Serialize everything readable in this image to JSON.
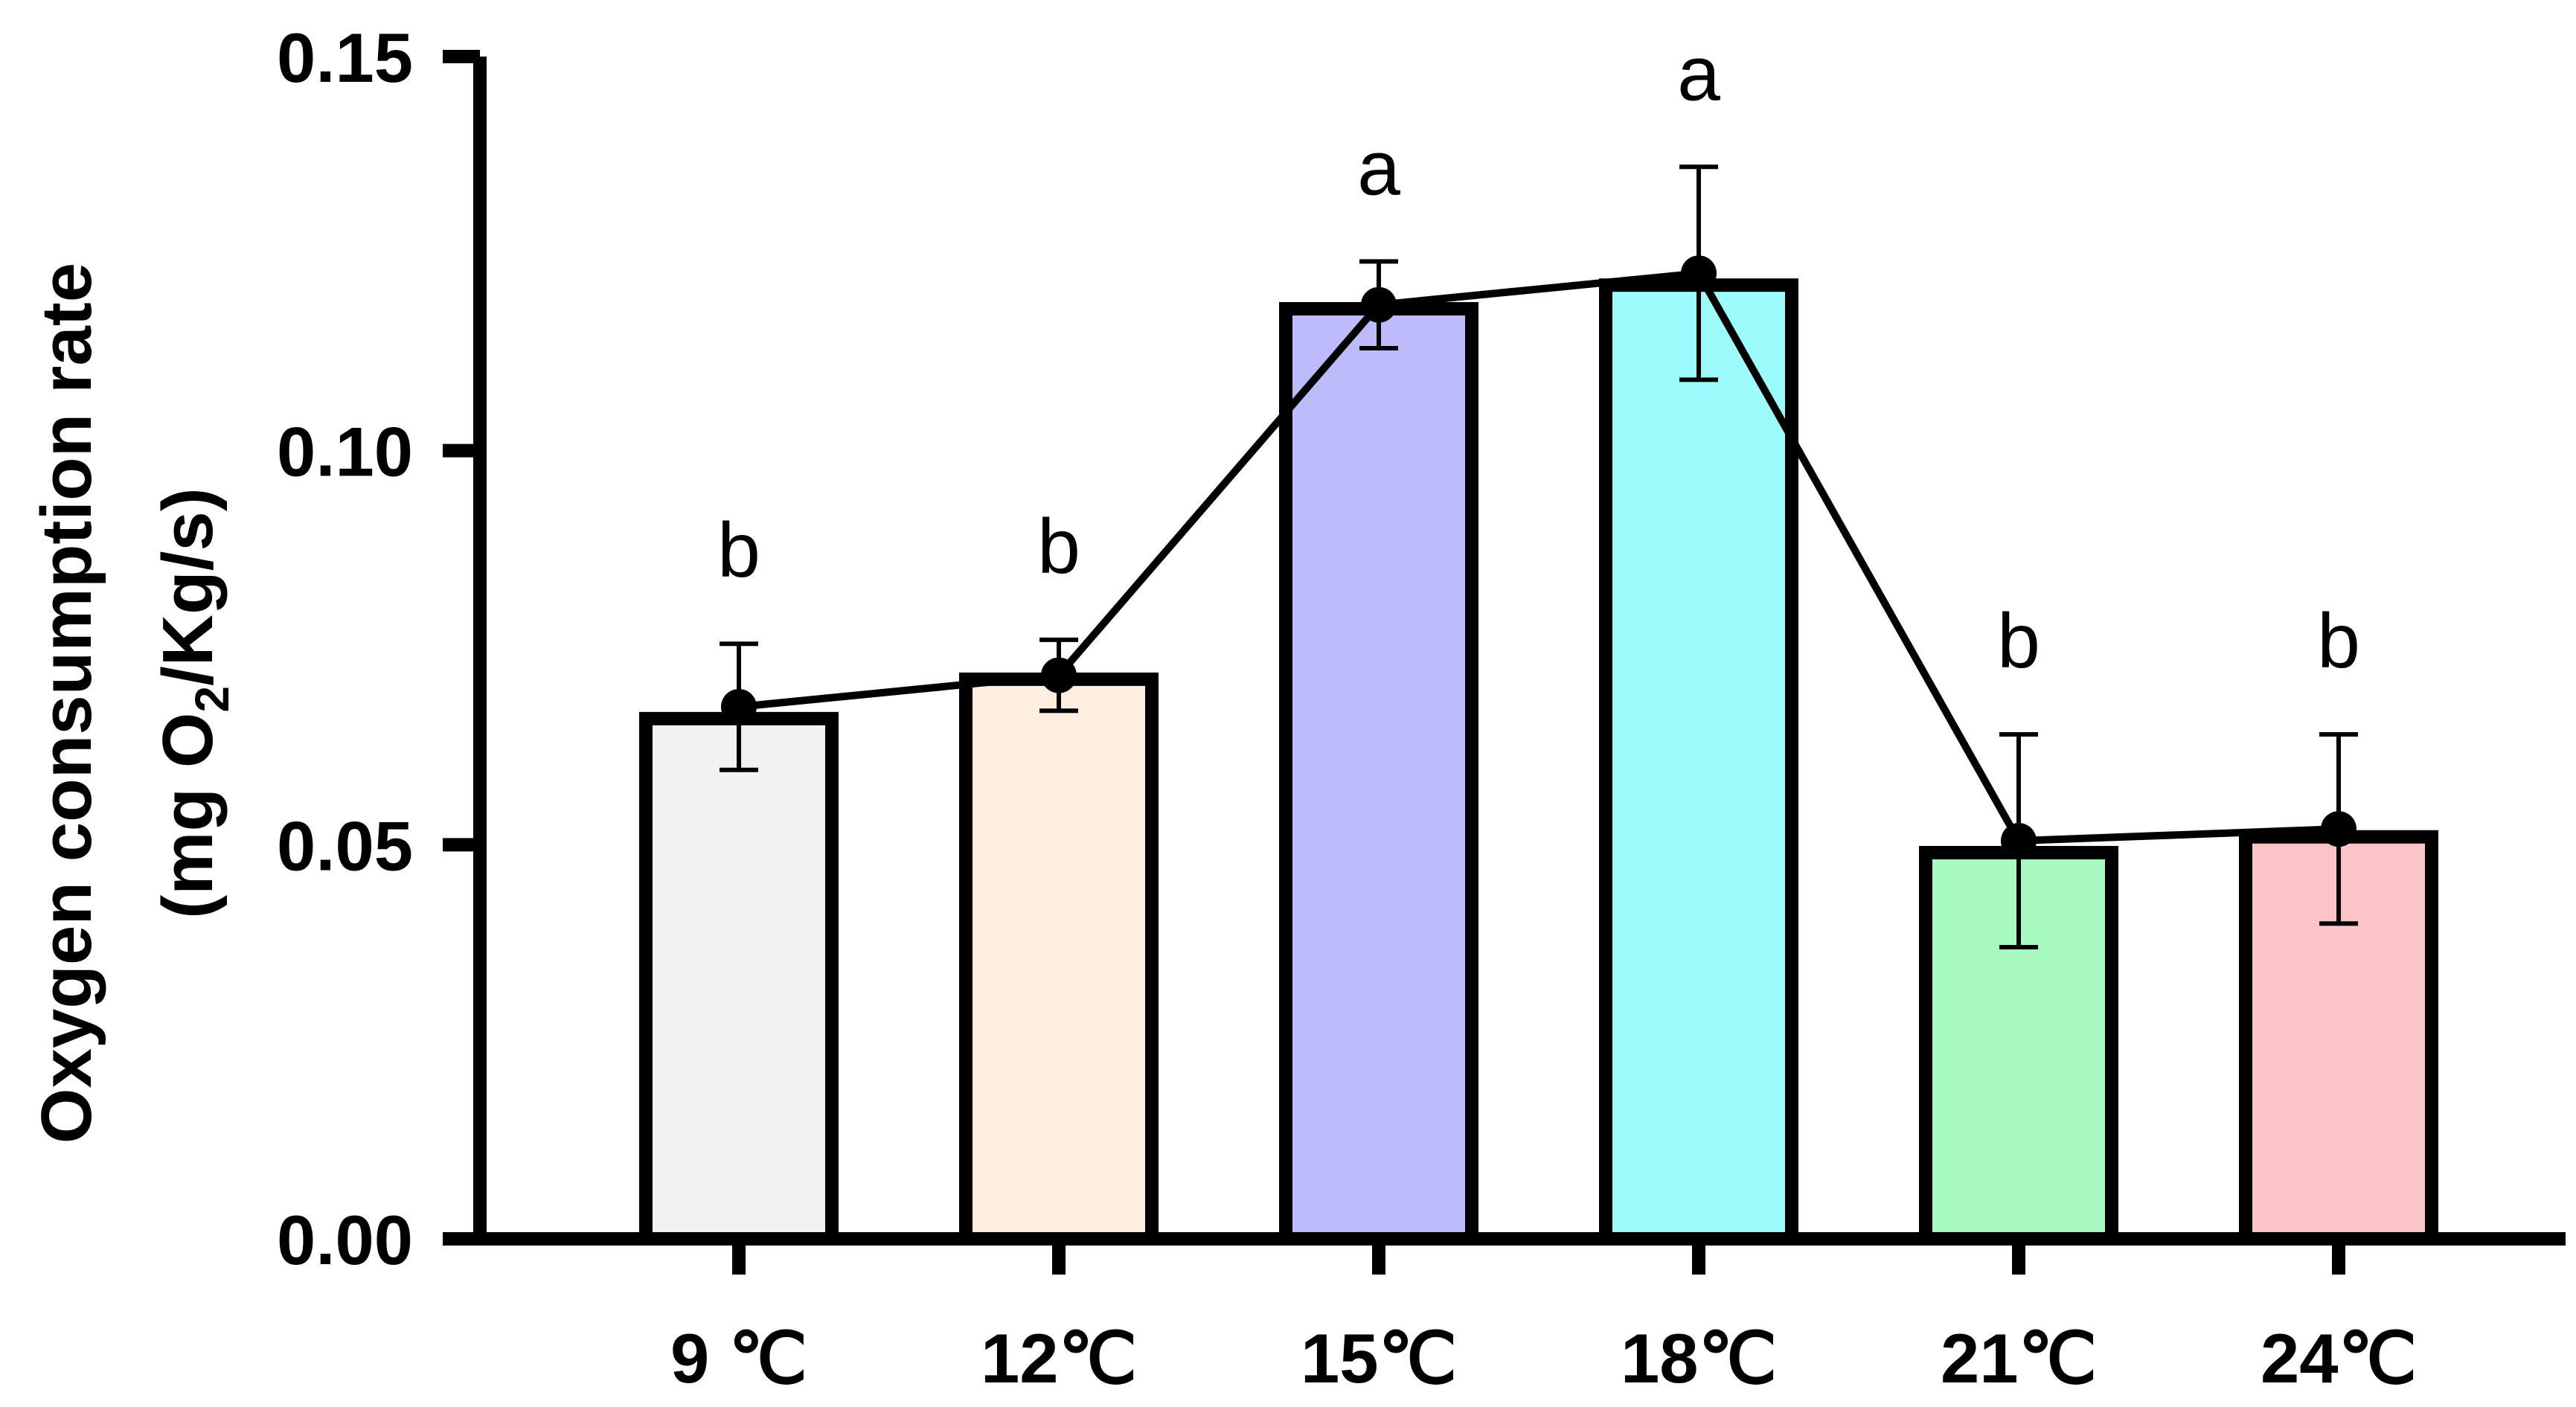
{
  "chart_data": {
    "type": "bar",
    "title": "",
    "xlabel": "",
    "ylabel": {
      "line1": "Oxygen consumption rate",
      "line2_prefix": "(mg O",
      "line2_subscript": "2",
      "line2_suffix": "/Kg/s)"
    },
    "ylim": [
      0,
      0.15
    ],
    "yticks": [
      0.0,
      0.05,
      0.1,
      0.15
    ],
    "ytick_labels": [
      "0.00",
      "0.05",
      "0.10",
      "0.15"
    ],
    "grid": false,
    "legend": "none",
    "categories": [
      "9 ℃",
      "12℃",
      "15℃",
      "18℃",
      "21℃",
      "24℃"
    ],
    "values": [
      0.066,
      0.071,
      0.118,
      0.121,
      0.049,
      0.051
    ],
    "line_values": [
      0.0675,
      0.0715,
      0.1185,
      0.1225,
      0.0505,
      0.052
    ],
    "errors": [
      0.008,
      0.0045,
      0.0055,
      0.0135,
      0.0135,
      0.012
    ],
    "significance": [
      "b",
      "b",
      "a",
      "a",
      "b",
      "b"
    ],
    "bar_colors": [
      "#f2f2f2",
      "#fdeedf",
      "#bcbcfb",
      "#9efbfc",
      "#a8f9bf",
      "#fbc4c7"
    ],
    "line_color": "#000000",
    "outline_color": "#000000"
  }
}
